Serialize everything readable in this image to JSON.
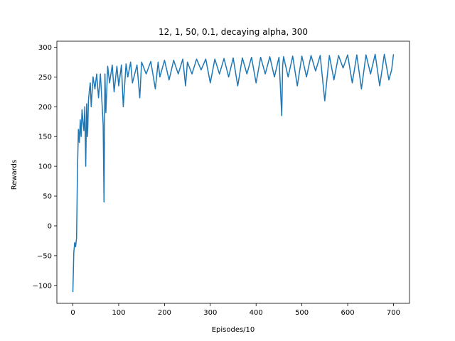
{
  "chart_data": {
    "type": "line",
    "title": "12, 1, 50, 0.1, decaying alpha, 300",
    "xlabel": "Episodes/10",
    "ylabel": "Rewards",
    "xlim": [
      -35,
      735
    ],
    "ylim": [
      -130,
      310
    ],
    "xticks": [
      0,
      100,
      200,
      300,
      400,
      500,
      600,
      700
    ],
    "xtick_labels": [
      "0",
      "100",
      "200",
      "300",
      "400",
      "500",
      "600",
      "700"
    ],
    "yticks": [
      -100,
      -50,
      0,
      50,
      100,
      150,
      200,
      250,
      300
    ],
    "ytick_labels": [
      "−100",
      "−50",
      "0",
      "50",
      "100",
      "150",
      "200",
      "250",
      "300"
    ],
    "grid": false,
    "legend": "none",
    "series": [
      {
        "color": "#1f77b4",
        "x": [
          0,
          2,
          4,
          6,
          8,
          10,
          12,
          14,
          16,
          18,
          20,
          22,
          24,
          26,
          28,
          30,
          32,
          34,
          36,
          38,
          40,
          44,
          48,
          52,
          56,
          60,
          64,
          66,
          68,
          70,
          72,
          76,
          80,
          86,
          90,
          96,
          100,
          106,
          110,
          116,
          120,
          126,
          130,
          140,
          146,
          150,
          160,
          170,
          180,
          186,
          190,
          200,
          210,
          220,
          230,
          240,
          246,
          250,
          260,
          270,
          280,
          290,
          300,
          310,
          320,
          330,
          340,
          350,
          360,
          370,
          380,
          390,
          400,
          410,
          420,
          430,
          440,
          450,
          456,
          458,
          460,
          470,
          480,
          490,
          500,
          510,
          520,
          530,
          540,
          550,
          560,
          570,
          580,
          590,
          600,
          610,
          620,
          630,
          640,
          650,
          660,
          670,
          680,
          690,
          696,
          700
        ],
        "y": [
          -111,
          -45,
          -28,
          -35,
          -20,
          95,
          162,
          140,
          178,
          150,
          195,
          175,
          160,
          200,
          100,
          205,
          150,
          210,
          228,
          240,
          200,
          250,
          230,
          255,
          215,
          255,
          200,
          170,
          40,
          255,
          190,
          268,
          240,
          270,
          225,
          268,
          235,
          270,
          200,
          272,
          250,
          275,
          240,
          270,
          215,
          275,
          255,
          276,
          230,
          275,
          250,
          278,
          245,
          278,
          255,
          280,
          235,
          275,
          255,
          280,
          262,
          280,
          240,
          280,
          255,
          281,
          250,
          282,
          235,
          282,
          255,
          283,
          240,
          283,
          255,
          284,
          250,
          283,
          185,
          270,
          284,
          250,
          285,
          235,
          285,
          250,
          286,
          260,
          286,
          210,
          286,
          245,
          286,
          265,
          287,
          240,
          287,
          230,
          287,
          255,
          288,
          235,
          288,
          245,
          262,
          288
        ]
      }
    ]
  }
}
